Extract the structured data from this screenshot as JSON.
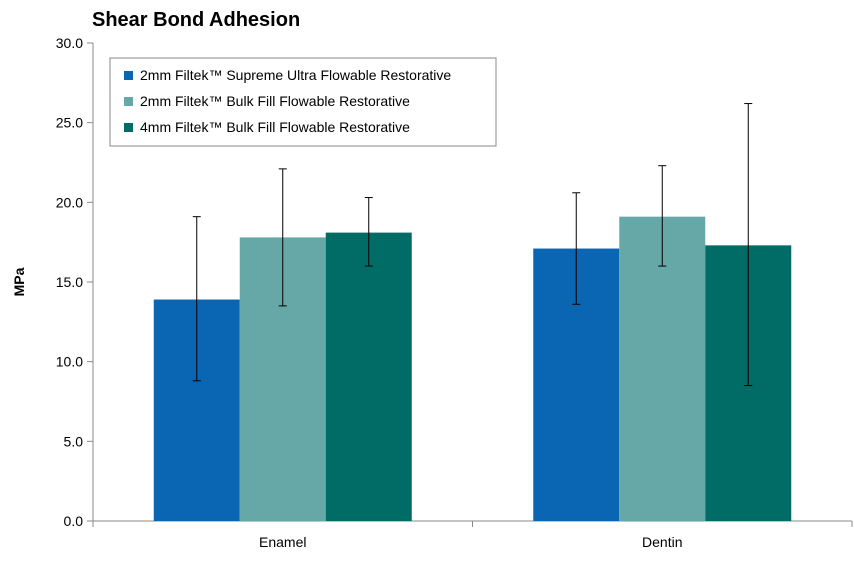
{
  "chart_data": {
    "type": "bar",
    "title": "Shear Bond Adhesion",
    "xlabel": "",
    "ylabel": "MPa",
    "ylim": [
      0,
      30
    ],
    "y_ticks": [
      "0.0",
      "5.0",
      "10.0",
      "15.0",
      "20.0",
      "25.0",
      "30.0"
    ],
    "y_tick_values": [
      0,
      5,
      10,
      15,
      20,
      25,
      30
    ],
    "grid": false,
    "legend_position": "top-left",
    "categories": [
      "Enamel",
      "Dentin"
    ],
    "series": [
      {
        "name": "2mm Filtek™ Supreme Ultra Flowable Restorative",
        "color": "#0a66b3",
        "values": [
          13.9,
          17.1
        ],
        "error_low": [
          8.8,
          13.6
        ],
        "error_high": [
          19.1,
          20.6
        ]
      },
      {
        "name": "2mm Filtek™ Bulk Fill Flowable Restorative",
        "color": "#66a8a8",
        "values": [
          17.8,
          19.1
        ],
        "error_low": [
          13.5,
          16.0
        ],
        "error_high": [
          22.1,
          22.3
        ]
      },
      {
        "name": "4mm Filtek™ Bulk Fill Flowable Restorative",
        "color": "#016b65",
        "values": [
          18.1,
          17.3
        ],
        "error_low": [
          16.0,
          8.5
        ],
        "error_high": [
          20.3,
          26.2
        ]
      }
    ]
  }
}
